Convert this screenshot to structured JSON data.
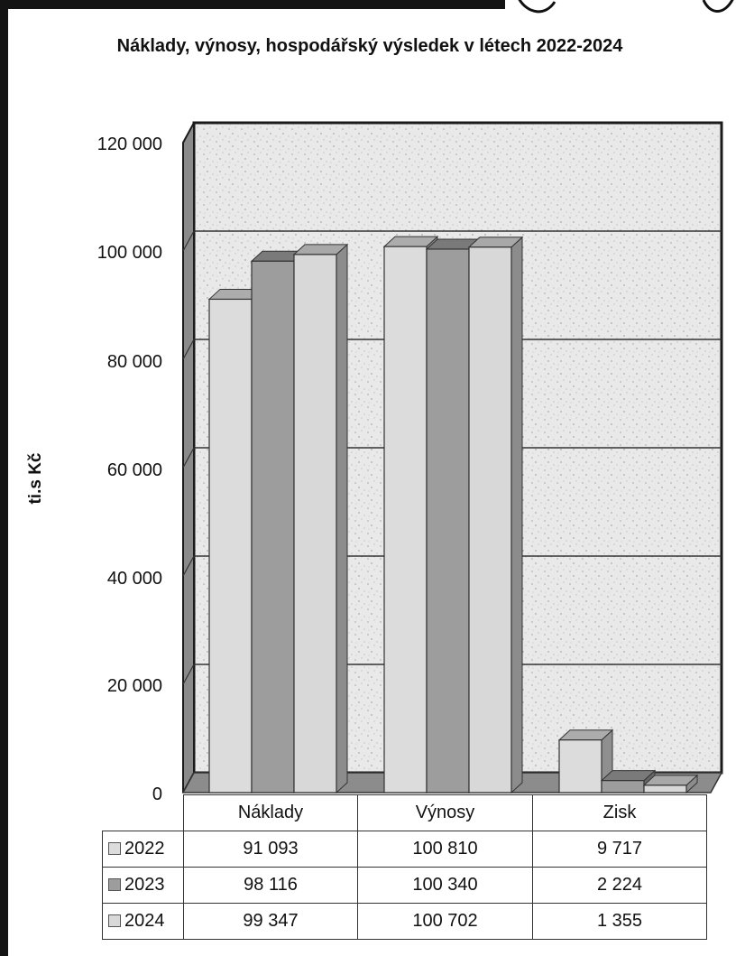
{
  "chart_data": {
    "type": "bar",
    "title": "Náklady, výnosy, hospodářský výsledek v létech 2022-2024",
    "ylabel": "ti.s Kč",
    "xlabel": "",
    "categories": [
      "Náklady",
      "Výnosy",
      "Zisk"
    ],
    "ylim": [
      0,
      120000
    ],
    "yticks": [
      "0",
      "20 000",
      "40 000",
      "60 000",
      "80 000",
      "100 000",
      "120 000"
    ],
    "grid": true,
    "legend": "data-table",
    "series": [
      {
        "name": "2022",
        "values": [
          91093,
          100810,
          9717
        ],
        "labels": [
          "91 093",
          "100 810",
          "9 717"
        ],
        "color": "#dcdcdc"
      },
      {
        "name": "2023",
        "values": [
          98116,
          100340,
          2224
        ],
        "labels": [
          "98 116",
          "100 340",
          "2 224"
        ],
        "color": "#9d9d9d"
      },
      {
        "name": "2024",
        "values": [
          99347,
          100702,
          1355
        ],
        "labels": [
          "99 347",
          "100 702",
          "1 355"
        ],
        "color": "#d8d8d8"
      }
    ]
  }
}
